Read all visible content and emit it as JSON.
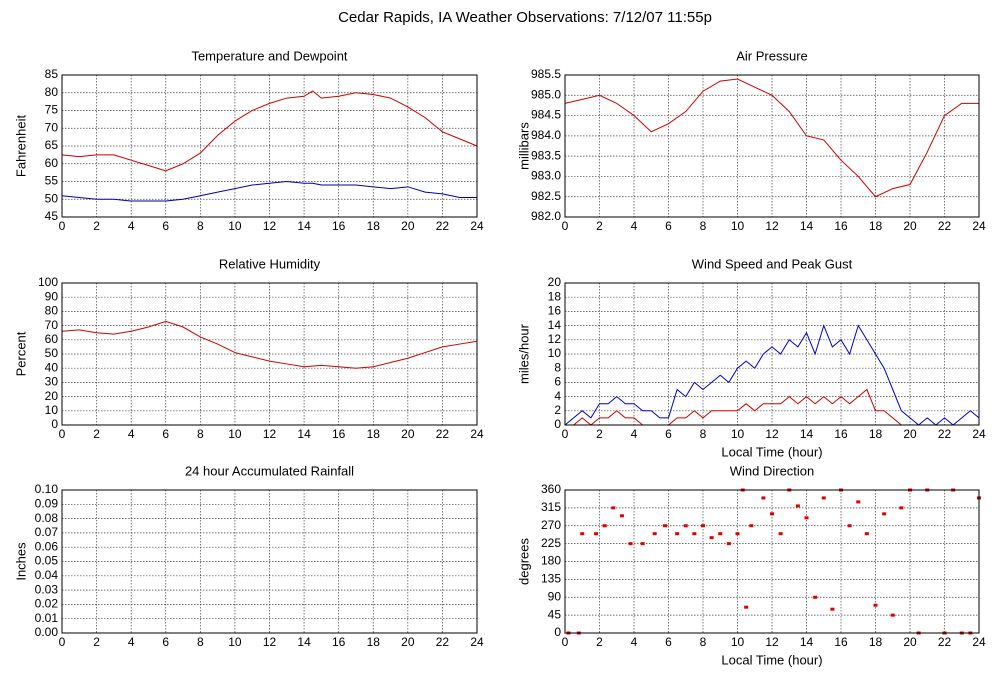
{
  "title": "Cedar Rapids, IA Weather Observations: 7/12/07 11:55p",
  "chart_data": [
    {
      "type": "line",
      "title": "Temperature and Dewpoint",
      "ylabel": "Fahrenheit",
      "x": [
        0,
        1,
        2,
        3,
        4,
        5,
        6,
        7,
        8,
        9,
        10,
        11,
        12,
        13,
        14,
        14.5,
        15,
        16,
        17,
        18,
        19,
        20,
        21,
        22,
        23,
        24
      ],
      "series": [
        {
          "color": "#cc0000",
          "values": [
            62.5,
            62,
            62.5,
            62.5,
            61,
            59.5,
            58,
            60,
            63,
            68,
            72,
            75,
            77,
            78.5,
            79,
            80.5,
            78.5,
            79,
            80,
            79.5,
            78.5,
            76,
            73,
            69,
            67,
            65
          ]
        },
        {
          "color": "#0000aa",
          "values": [
            51,
            50.5,
            50,
            50,
            49.5,
            49.5,
            49.5,
            50,
            51,
            52,
            53,
            54,
            54.5,
            55,
            54.5,
            54.5,
            54,
            54,
            54,
            53.5,
            53,
            53.5,
            52,
            51.5,
            50.5,
            50.5
          ]
        }
      ],
      "xlim": [
        0,
        24
      ],
      "xticks": [
        0,
        2,
        4,
        6,
        8,
        10,
        12,
        14,
        16,
        18,
        20,
        22,
        24
      ],
      "ylim": [
        45,
        85
      ],
      "yticks": [
        45,
        50,
        55,
        60,
        65,
        70,
        75,
        80,
        85
      ],
      "grid": true
    },
    {
      "type": "line",
      "title": "Air Pressure",
      "ylabel": "millibars",
      "x": [
        0,
        1,
        2,
        3,
        4,
        5,
        6,
        7,
        8,
        9,
        10,
        11,
        12,
        13,
        14,
        15,
        16,
        17,
        18,
        19,
        20,
        21,
        22,
        23,
        24
      ],
      "series": [
        {
          "color": "#cc0000",
          "values": [
            984.8,
            984.9,
            985.0,
            984.8,
            984.5,
            984.1,
            984.3,
            984.6,
            985.1,
            985.35,
            985.4,
            985.2,
            985.0,
            984.6,
            984.0,
            983.9,
            983.4,
            983.0,
            982.5,
            982.7,
            982.8,
            983.6,
            984.5,
            984.8,
            984.8
          ]
        }
      ],
      "xlim": [
        0,
        24
      ],
      "xticks": [
        0,
        2,
        4,
        6,
        8,
        10,
        12,
        14,
        16,
        18,
        20,
        22,
        24
      ],
      "ylim": [
        982,
        985.5
      ],
      "yticks": [
        {
          "value": 982,
          "label": "982.0"
        },
        982.5,
        {
          "value": 983,
          "label": "983.0"
        },
        983.5,
        {
          "value": 984,
          "label": "984.0"
        },
        984.5,
        {
          "value": 985,
          "label": "985.0"
        },
        985.5
      ],
      "grid": true
    },
    {
      "type": "line",
      "title": "Relative Humidity",
      "ylabel": "Percent",
      "x": [
        0,
        1,
        2,
        3,
        4,
        5,
        6,
        7,
        8,
        9,
        10,
        11,
        12,
        13,
        14,
        15,
        16,
        17,
        18,
        19,
        20,
        21,
        22,
        23,
        24
      ],
      "series": [
        {
          "color": "#cc0000",
          "values": [
            66,
            67,
            65,
            64,
            66,
            69,
            73,
            69,
            62,
            57,
            51,
            48,
            45,
            43,
            41,
            42,
            41,
            40,
            41,
            44,
            47,
            51,
            55,
            57,
            59
          ]
        }
      ],
      "xlim": [
        0,
        24
      ],
      "xticks": [
        0,
        2,
        4,
        6,
        8,
        10,
        12,
        14,
        16,
        18,
        20,
        22,
        24
      ],
      "ylim": [
        0,
        100
      ],
      "yticks": [
        0,
        10,
        20,
        30,
        40,
        50,
        60,
        70,
        80,
        90,
        100
      ],
      "grid": true
    },
    {
      "type": "line",
      "title": "Wind Speed and Peak Gust",
      "ylabel": "miles/hour",
      "xlabel": "Local Time (hour)",
      "x": [
        0,
        0.5,
        1,
        1.5,
        2,
        2.5,
        3,
        3.5,
        4,
        4.5,
        5,
        5.5,
        6,
        6.5,
        7,
        7.5,
        8,
        8.5,
        9,
        9.5,
        10,
        10.5,
        11,
        11.5,
        12,
        12.5,
        13,
        13.5,
        14,
        14.5,
        15,
        15.5,
        16,
        16.5,
        17,
        17.5,
        18,
        18.5,
        19,
        19.5,
        20,
        20.5,
        21,
        21.5,
        22,
        22.5,
        23,
        23.5,
        24
      ],
      "series": [
        {
          "color": "#0000cc",
          "values": [
            0,
            1,
            2,
            1,
            3,
            3,
            4,
            3,
            3,
            2,
            2,
            1,
            1,
            5,
            4,
            6,
            5,
            6,
            7,
            6,
            8,
            9,
            8,
            10,
            11,
            10,
            12,
            11,
            13,
            10,
            14,
            11,
            12,
            10,
            14,
            12,
            10,
            8,
            5,
            2,
            1,
            0,
            1,
            0,
            1,
            0,
            1,
            2,
            1
          ]
        },
        {
          "color": "#cc0000",
          "values": [
            0,
            0,
            1,
            0,
            1,
            1,
            2,
            1,
            1,
            0,
            0,
            0,
            0,
            1,
            1,
            2,
            1,
            2,
            2,
            2,
            2,
            3,
            2,
            3,
            3,
            3,
            4,
            3,
            4,
            3,
            4,
            3,
            4,
            3,
            4,
            5,
            2,
            2,
            1,
            0,
            0,
            0,
            0,
            0,
            0,
            0,
            0,
            0,
            0
          ]
        }
      ],
      "xlim": [
        0,
        24
      ],
      "xticks": [
        0,
        2,
        4,
        6,
        8,
        10,
        12,
        14,
        16,
        18,
        20,
        22,
        24
      ],
      "ylim": [
        0,
        20
      ],
      "yticks": [
        0,
        2,
        4,
        6,
        8,
        10,
        12,
        14,
        16,
        18,
        20
      ],
      "grid": true
    },
    {
      "type": "line",
      "title": "24 hour Accumulated Rainfall",
      "ylabel": "Inches",
      "x": [
        0,
        24
      ],
      "series": [
        {
          "color": "#cc0000",
          "values": [
            0,
            0
          ]
        }
      ],
      "xlim": [
        0,
        24
      ],
      "xticks": [
        0,
        2,
        4,
        6,
        8,
        10,
        12,
        14,
        16,
        18,
        20,
        22,
        24
      ],
      "ylim": [
        0,
        0.1
      ],
      "yticks": [
        {
          "value": 0,
          "label": "0.00"
        },
        0.01,
        0.02,
        0.03,
        0.04,
        0.05,
        0.06,
        0.07,
        0.08,
        0.09,
        {
          "value": 0.1,
          "label": "0.10"
        }
      ],
      "grid": true
    },
    {
      "type": "scatter",
      "title": "Wind Direction",
      "ylabel": "degrees",
      "xlabel": "Local Time (hour)",
      "x": [
        0.2,
        0.8,
        1,
        1.8,
        2.3,
        2.8,
        3.3,
        3.8,
        4.5,
        5.2,
        5.8,
        6.5,
        7,
        7.5,
        8,
        8.5,
        9,
        9.5,
        10,
        10.3,
        10.5,
        10.8,
        11.5,
        12,
        12.5,
        13,
        13.5,
        14,
        14.5,
        15,
        15.5,
        16,
        16.5,
        17,
        17.5,
        18,
        18.5,
        19,
        19.5,
        20,
        20.5,
        21,
        22,
        22.5,
        23,
        23.5,
        24
      ],
      "series": [
        {
          "color": "#dd0000",
          "values": [
            0,
            0,
            250,
            250,
            270,
            315,
            295,
            225,
            225,
            250,
            270,
            250,
            270,
            250,
            270,
            240,
            250,
            225,
            250,
            360,
            65,
            270,
            340,
            300,
            250,
            360,
            320,
            290,
            90,
            340,
            60,
            360,
            270,
            330,
            250,
            70,
            300,
            45,
            315,
            360,
            0,
            360,
            0,
            360,
            0,
            0,
            340
          ]
        }
      ],
      "xlim": [
        0,
        24
      ],
      "xticks": [
        0,
        2,
        4,
        6,
        8,
        10,
        12,
        14,
        16,
        18,
        20,
        22,
        24
      ],
      "ylim": [
        0,
        360
      ],
      "yticks": [
        0,
        45,
        90,
        135,
        180,
        225,
        270,
        315,
        360
      ],
      "grid": true
    }
  ]
}
